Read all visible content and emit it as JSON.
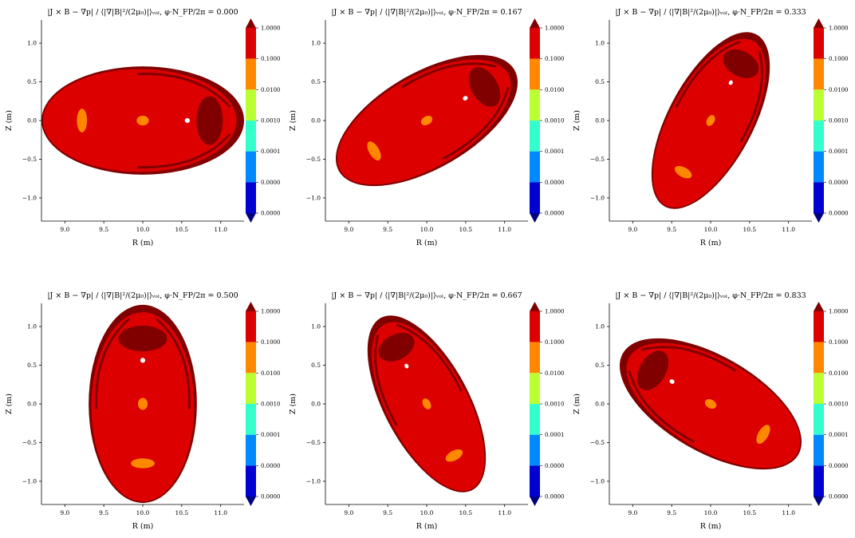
{
  "chart_data": [
    {
      "type": "contour",
      "title": "|J × B − ∇p| / ⟨|∇|B|²/(2μ₀)|⟩ᵥₒₗ, φ·N_FP/2π = 0.000",
      "xlabel": "R (m)",
      "ylabel": "Z (m)",
      "xlim": [
        8.7,
        11.3
      ],
      "ylim": [
        -1.3,
        1.3
      ],
      "xticks": [
        "9.0",
        "9.5",
        "10.0",
        "10.5",
        "11.0"
      ],
      "yticks": [
        "1.0",
        "0.5",
        "0.0",
        "−0.5",
        "−1.0"
      ],
      "colorbar_levels": [
        "1.0000",
        "0.1000",
        "0.0100",
        "0.0010",
        "0.0001",
        "0.0000",
        "0.0000"
      ],
      "colorbar_colors": [
        "#000080",
        "#0000d0",
        "#0088ff",
        "#33ffcc",
        "#bbff33",
        "#ff8800",
        "#dd0000",
        "#800000"
      ],
      "boundary": {
        "center": [
          10.0,
          0.0
        ],
        "a": 1.3,
        "b": 0.7,
        "angle_deg": 0
      }
    },
    {
      "type": "contour",
      "title": "|J × B − ∇p| / ⟨|∇|B|²/(2μ₀)|⟩ᵥₒₗ, φ·N_FP/2π = 0.167",
      "xlabel": "R (m)",
      "ylabel": "Z (m)",
      "xlim": [
        8.7,
        11.3
      ],
      "ylim": [
        -1.3,
        1.3
      ],
      "xticks": [
        "9.0",
        "9.5",
        "10.0",
        "10.5",
        "11.0"
      ],
      "yticks": [
        "1.0",
        "0.5",
        "0.0",
        "−0.5",
        "−1.0"
      ],
      "colorbar_levels": [
        "1.0000",
        "0.1000",
        "0.0100",
        "0.0010",
        "0.0001",
        "0.0000",
        "0.0000"
      ],
      "colorbar_colors": [
        "#000080",
        "#0000d0",
        "#0088ff",
        "#33ffcc",
        "#bbff33",
        "#ff8800",
        "#dd0000",
        "#800000"
      ],
      "boundary": {
        "center": [
          10.0,
          0.0
        ],
        "a": 1.3,
        "b": 0.62,
        "angle_deg": 30
      }
    },
    {
      "type": "contour",
      "title": "|J × B − ∇p| / ⟨|∇|B|²/(2μ₀)|⟩ᵥₒₗ, φ·N_FP/2π = 0.333",
      "xlabel": "R (m)",
      "ylabel": "Z (m)",
      "xlim": [
        8.7,
        11.3
      ],
      "ylim": [
        -1.3,
        1.3
      ],
      "xticks": [
        "9.0",
        "9.5",
        "10.0",
        "10.5",
        "11.0"
      ],
      "yticks": [
        "1.0",
        "0.5",
        "0.0",
        "−0.5",
        "−1.0"
      ],
      "colorbar_levels": [
        "1.0000",
        "0.1000",
        "0.0100",
        "0.0010",
        "0.0001",
        "0.0000",
        "0.0000"
      ],
      "colorbar_colors": [
        "#000080",
        "#0000d0",
        "#0088ff",
        "#33ffcc",
        "#bbff33",
        "#ff8800",
        "#dd0000",
        "#800000"
      ],
      "boundary": {
        "center": [
          10.0,
          0.0
        ],
        "a": 1.25,
        "b": 0.55,
        "angle_deg": 62
      }
    },
    {
      "type": "contour",
      "title": "|J × B − ∇p| / ⟨|∇|B|²/(2μ₀)|⟩ᵥₒₗ, φ·N_FP/2π = 0.500",
      "xlabel": "R (m)",
      "ylabel": "Z (m)",
      "xlim": [
        8.7,
        11.3
      ],
      "ylim": [
        -1.3,
        1.3
      ],
      "xticks": [
        "9.0",
        "9.5",
        "10.0",
        "10.5",
        "11.0"
      ],
      "yticks": [
        "1.0",
        "0.5",
        "0.0",
        "−0.5",
        "−1.0"
      ],
      "colorbar_levels": [
        "1.0000",
        "0.1000",
        "0.0100",
        "0.0010",
        "0.0001",
        "0.0000",
        "0.0000"
      ],
      "colorbar_colors": [
        "#000080",
        "#0000d0",
        "#0088ff",
        "#33ffcc",
        "#bbff33",
        "#ff8800",
        "#dd0000",
        "#800000"
      ],
      "boundary": {
        "center": [
          10.0,
          0.0
        ],
        "a": 1.27,
        "b": 0.7,
        "angle_deg": 90
      }
    },
    {
      "type": "contour",
      "title": "|J × B − ∇p| / ⟨|∇|B|²/(2μ₀)|⟩ᵥₒₗ, φ·N_FP/2π = 0.667",
      "xlabel": "R (m)",
      "ylabel": "Z (m)",
      "xlim": [
        8.7,
        11.3
      ],
      "ylim": [
        -1.3,
        1.3
      ],
      "xticks": [
        "9.0",
        "9.5",
        "10.0",
        "10.5",
        "11.0"
      ],
      "yticks": [
        "1.0",
        "0.5",
        "0.0",
        "−0.5",
        "−1.0"
      ],
      "colorbar_levels": [
        "1.0000",
        "0.1000",
        "0.0100",
        "0.0010",
        "0.0001",
        "0.0000",
        "0.0000"
      ],
      "colorbar_colors": [
        "#000080",
        "#0000d0",
        "#0088ff",
        "#33ffcc",
        "#bbff33",
        "#ff8800",
        "#dd0000",
        "#800000"
      ],
      "boundary": {
        "center": [
          10.0,
          0.0
        ],
        "a": 1.25,
        "b": 0.55,
        "angle_deg": 118
      }
    },
    {
      "type": "contour",
      "title": "|J × B − ∇p| / ⟨|∇|B|²/(2μ₀)|⟩ᵥₒₗ, φ·N_FP/2π = 0.833",
      "xlabel": "R (m)",
      "ylabel": "Z (m)",
      "xlim": [
        8.7,
        11.3
      ],
      "ylim": [
        -1.3,
        1.3
      ],
      "xticks": [
        "9.0",
        "9.5",
        "10.0",
        "10.5",
        "11.0"
      ],
      "yticks": [
        "1.0",
        "0.5",
        "0.0",
        "−0.5",
        "−1.0"
      ],
      "colorbar_levels": [
        "1.0000",
        "0.1000",
        "0.0100",
        "0.0010",
        "0.0001",
        "0.0000",
        "0.0000"
      ],
      "colorbar_colors": [
        "#000080",
        "#0000d0",
        "#0088ff",
        "#33ffcc",
        "#bbff33",
        "#ff8800",
        "#dd0000",
        "#800000"
      ],
      "boundary": {
        "center": [
          10.0,
          0.0
        ],
        "a": 1.3,
        "b": 0.62,
        "angle_deg": 150
      }
    }
  ]
}
